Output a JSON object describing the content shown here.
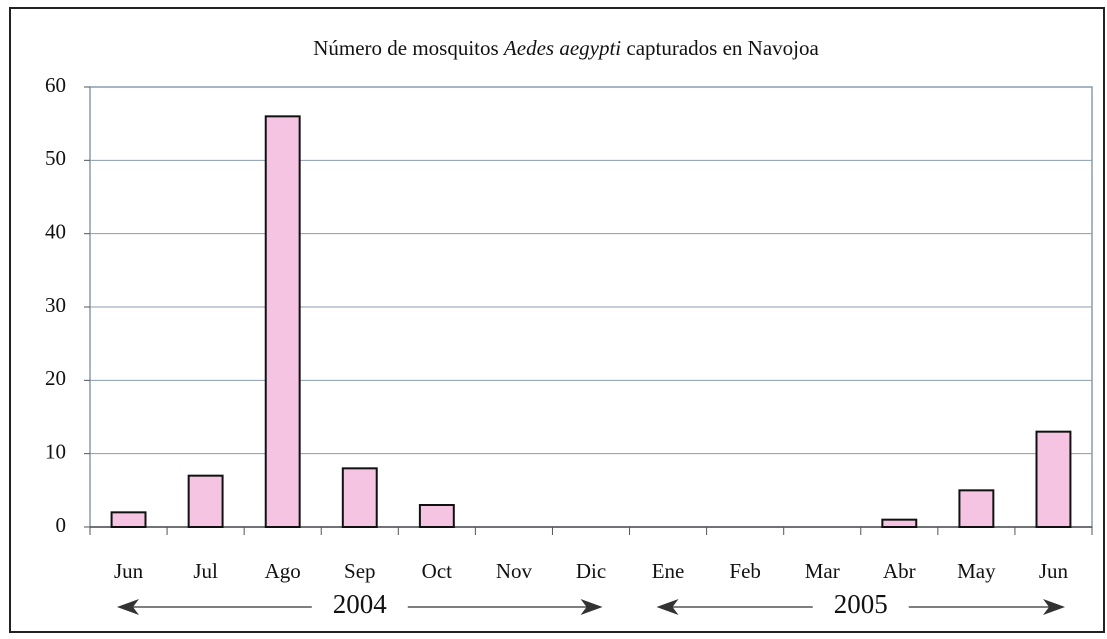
{
  "chart_data": {
    "type": "bar",
    "title": [
      "Número de mosquitos ",
      "Aedes aegypti",
      " capturados en Navojoa"
    ],
    "categories": [
      "Jun",
      "Jul",
      "Ago",
      "Sep",
      "Oct",
      "Nov",
      "Dic",
      "Ene",
      "Feb",
      "Mar",
      "Abr",
      "May",
      "Jun"
    ],
    "values": [
      2,
      7,
      56,
      8,
      3,
      0,
      0,
      0,
      0,
      0,
      1,
      5,
      13
    ],
    "color": "#f4c4e2",
    "ylim": [
      0,
      60
    ],
    "yticks": [
      0,
      10,
      20,
      30,
      40,
      50,
      60
    ],
    "grid": true,
    "annotations": [
      "2004",
      "2005"
    ]
  }
}
